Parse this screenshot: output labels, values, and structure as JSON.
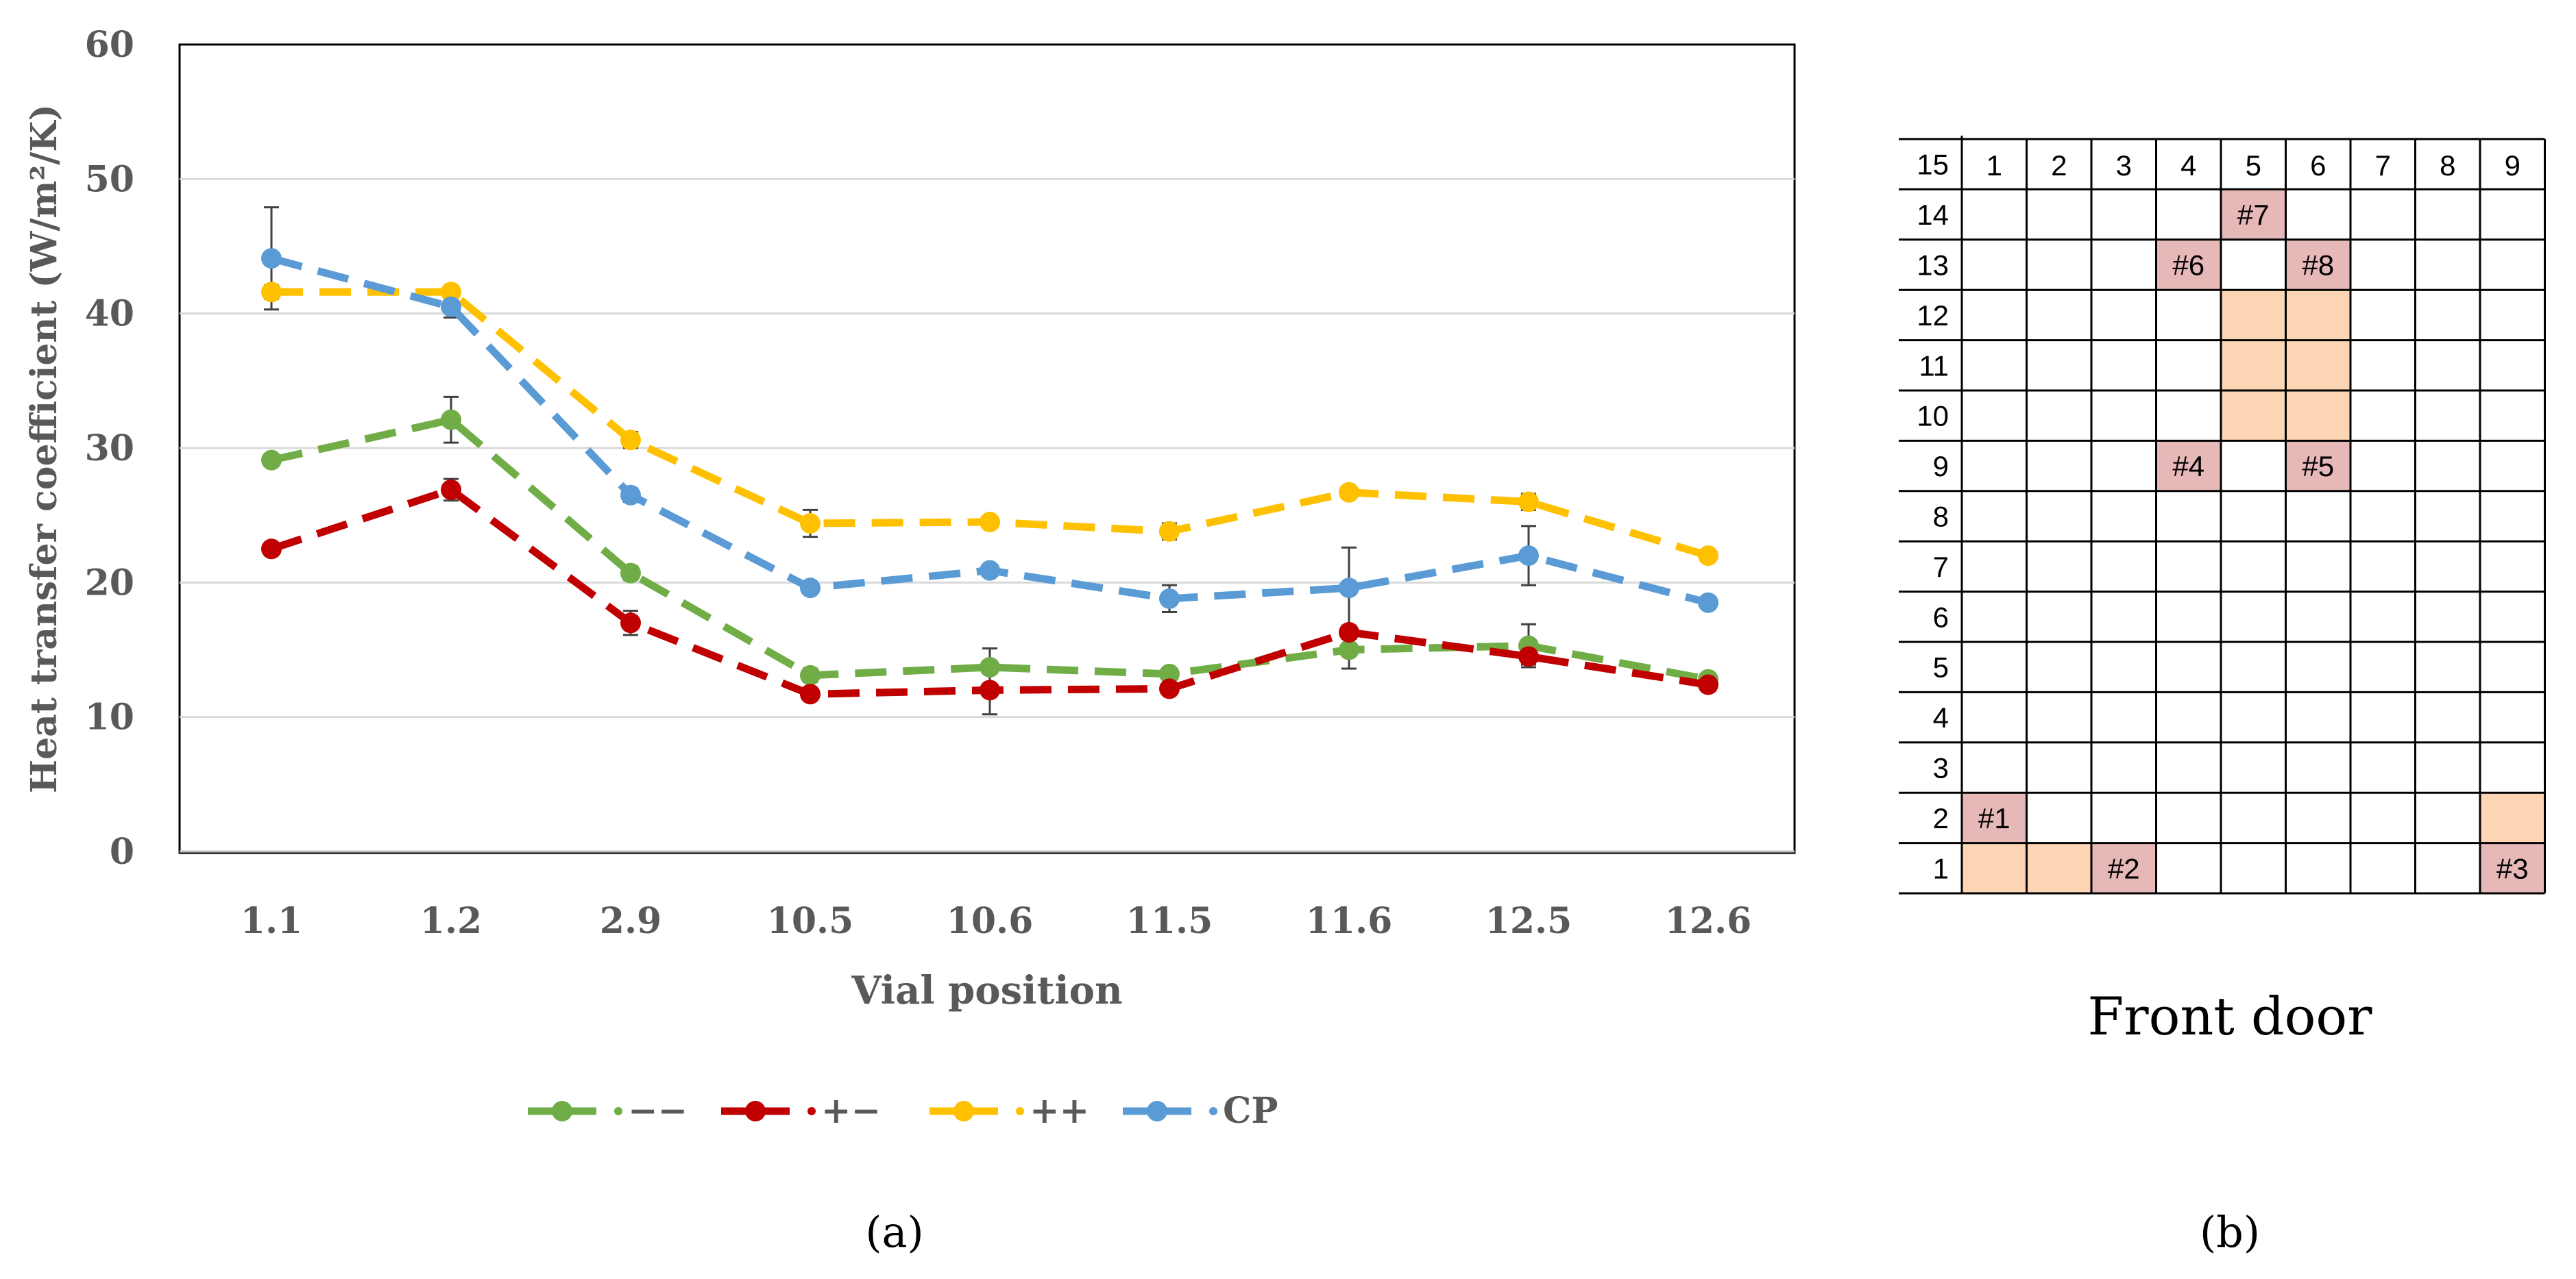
{
  "chart_data": [
    {
      "type": "line",
      "panel_label": "(a)",
      "title": "",
      "xlabel": "Vial position",
      "ylabel": "Heat transfer coefficient (W/m²/K)",
      "ylim": [
        0,
        60
      ],
      "yticks": [
        0,
        10,
        20,
        30,
        40,
        50,
        60
      ],
      "grid": true,
      "legend_position": "bottom",
      "categories": [
        "1.1",
        "1.2",
        "2.9",
        "10.5",
        "10.6",
        "11.5",
        "11.6",
        "12.5",
        "12.6"
      ],
      "series": [
        {
          "name": "−−",
          "legend_label": "−−",
          "color": "#70ad47",
          "marker": "circle",
          "values": [
            29.1,
            32.1,
            20.7,
            13.1,
            13.7,
            13.2,
            15.0,
            15.3,
            12.8
          ],
          "errors": [
            0.3,
            1.7,
            0.5,
            0.5,
            1.4,
            0.4,
            1.4,
            1.6,
            0.3
          ]
        },
        {
          "name": "+−",
          "legend_label": "+−",
          "color": "#c00000",
          "marker": "circle",
          "values": [
            22.5,
            26.9,
            17.0,
            11.7,
            12.0,
            12.1,
            16.3,
            14.5,
            12.4
          ],
          "errors": [
            0.3,
            0.8,
            0.9,
            0.3,
            1.8,
            0.3,
            0.5,
            0.6,
            0.3
          ]
        },
        {
          "name": "++",
          "legend_label": "++",
          "color": "#ffc000",
          "marker": "circle",
          "values": [
            41.6,
            41.6,
            30.6,
            24.4,
            24.5,
            23.8,
            26.7,
            26.0,
            22.0
          ],
          "errors": [
            0.5,
            0.3,
            0.6,
            1.0,
            0.3,
            0.6,
            0.3,
            0.6,
            0.3
          ]
        },
        {
          "name": "CP",
          "legend_label": "CP",
          "color": "#5b9bd5",
          "marker": "circle",
          "values": [
            44.1,
            40.5,
            26.5,
            19.6,
            20.9,
            18.8,
            19.6,
            22.0,
            18.5
          ],
          "errors": [
            3.8,
            0.8,
            0.5,
            0.3,
            0.3,
            1.0,
            3.0,
            2.2,
            0.3
          ]
        }
      ]
    },
    {
      "type": "table",
      "panel_label": "(b)",
      "caption": "Front door",
      "columns": [
        "1",
        "2",
        "3",
        "4",
        "5",
        "6",
        "7",
        "8",
        "9"
      ],
      "rows": [
        "15",
        "14",
        "13",
        "12",
        "11",
        "10",
        "9",
        "8",
        "7",
        "6",
        "5",
        "4",
        "3",
        "2",
        "1"
      ],
      "labeled_cells": [
        {
          "row": 14,
          "col": 5,
          "label": "#7"
        },
        {
          "row": 13,
          "col": 4,
          "label": "#6"
        },
        {
          "row": 13,
          "col": 6,
          "label": "#8"
        },
        {
          "row": 9,
          "col": 4,
          "label": "#4"
        },
        {
          "row": 9,
          "col": 6,
          "label": "#5"
        },
        {
          "row": 2,
          "col": 1,
          "label": "#1"
        },
        {
          "row": 1,
          "col": 3,
          "label": "#2"
        },
        {
          "row": 1,
          "col": 9,
          "label": "#3"
        }
      ],
      "highlighted_cells": [
        {
          "row": 12,
          "col": 5
        },
        {
          "row": 12,
          "col": 6
        },
        {
          "row": 11,
          "col": 5
        },
        {
          "row": 11,
          "col": 6
        },
        {
          "row": 10,
          "col": 5
        },
        {
          "row": 10,
          "col": 6
        },
        {
          "row": 2,
          "col": 9
        },
        {
          "row": 1,
          "col": 1
        },
        {
          "row": 1,
          "col": 2
        }
      ],
      "labeled_cell_color": "#e6b8b7",
      "highlighted_cell_color": "#fcd5b4"
    }
  ]
}
